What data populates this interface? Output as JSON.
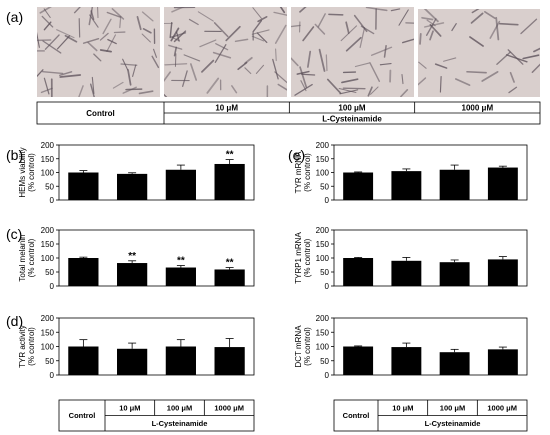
{
  "panel_letters": {
    "a": "(a)",
    "b": "(b)",
    "c": "(c)",
    "d": "(d)",
    "e": "(e)"
  },
  "photo_colors": {
    "background": "#d9cfcd",
    "cells": "#5a4f58"
  },
  "photos": [
    {
      "condition": "Control",
      "cell_density": 1.0
    },
    {
      "condition": "10 µM",
      "cell_density": 0.95
    },
    {
      "condition": "100 µM",
      "cell_density": 0.8
    },
    {
      "condition": "1000 µM",
      "cell_density": 0.6
    }
  ],
  "condition_table": {
    "control": "Control",
    "doses": [
      "10 μM",
      "100 μM",
      "1000 μM"
    ],
    "treatment": "L-Cysteinamide"
  },
  "chart_data": [
    {
      "id": "b",
      "type": "bar",
      "title": "",
      "ylabel": [
        "HEMs viability",
        "(% control)"
      ],
      "ylim": [
        0,
        200
      ],
      "yticks": [
        0,
        50,
        100,
        150,
        200
      ],
      "categories": [
        "Control",
        "10 μM",
        "100 μM",
        "1000 μM"
      ],
      "values": [
        100,
        95,
        110,
        131
      ],
      "errors": [
        7,
        4,
        17,
        16
      ],
      "significance": [
        "",
        "",
        "",
        "**"
      ],
      "bar_color": "#000000"
    },
    {
      "id": "c",
      "type": "bar",
      "title": "",
      "ylabel": [
        "Total melanin",
        "(% control)"
      ],
      "ylim": [
        0,
        200
      ],
      "yticks": [
        0,
        50,
        100,
        150,
        200
      ],
      "categories": [
        "Control",
        "10 μM",
        "100 μM",
        "1000 μM"
      ],
      "values": [
        100,
        82,
        66,
        59
      ],
      "errors": [
        3,
        8,
        7,
        7
      ],
      "significance": [
        "",
        "**",
        "**",
        "**"
      ],
      "bar_color": "#000000"
    },
    {
      "id": "d",
      "type": "bar",
      "title": "",
      "ylabel": [
        "TYR activity",
        "(% control)"
      ],
      "ylim": [
        0,
        200
      ],
      "yticks": [
        0,
        50,
        100,
        150,
        200
      ],
      "categories": [
        "Control",
        "10 μM",
        "100 μM",
        "1000 μM"
      ],
      "values": [
        100,
        92,
        100,
        98
      ],
      "errors": [
        24,
        20,
        24,
        30
      ],
      "significance": [
        "",
        "",
        "",
        ""
      ],
      "bar_color": "#000000"
    },
    {
      "id": "e1",
      "type": "bar",
      "title": "",
      "ylabel": [
        "TYR mRNA",
        "(% control)"
      ],
      "ylim": [
        0,
        200
      ],
      "yticks": [
        0,
        50,
        100,
        150,
        200
      ],
      "categories": [
        "Control",
        "10 μM",
        "100 μM",
        "1000 μM"
      ],
      "values": [
        100,
        105,
        110,
        118
      ],
      "errors": [
        2,
        8,
        17,
        5
      ],
      "significance": [
        "",
        "",
        "",
        ""
      ],
      "bar_color": "#000000"
    },
    {
      "id": "e2",
      "type": "bar",
      "title": "",
      "ylabel": [
        "TYRP1 mRNA",
        "(% control)"
      ],
      "ylim": [
        0,
        200
      ],
      "yticks": [
        0,
        50,
        100,
        150,
        200
      ],
      "categories": [
        "Control",
        "10 μM",
        "100 μM",
        "1000 μM"
      ],
      "values": [
        100,
        90,
        85,
        95
      ],
      "errors": [
        2,
        12,
        8,
        10
      ],
      "significance": [
        "",
        "",
        "",
        ""
      ],
      "bar_color": "#000000"
    },
    {
      "id": "e3",
      "type": "bar",
      "title": "",
      "ylabel": [
        "DCT mRNA",
        "(% control)"
      ],
      "ylim": [
        0,
        200
      ],
      "yticks": [
        0,
        50,
        100,
        150,
        200
      ],
      "categories": [
        "Control",
        "10 μM",
        "100 μM",
        "1000 μM"
      ],
      "values": [
        100,
        98,
        80,
        90
      ],
      "errors": [
        2,
        14,
        10,
        8
      ],
      "significance": [
        "",
        "",
        "",
        ""
      ],
      "bar_color": "#000000"
    }
  ]
}
